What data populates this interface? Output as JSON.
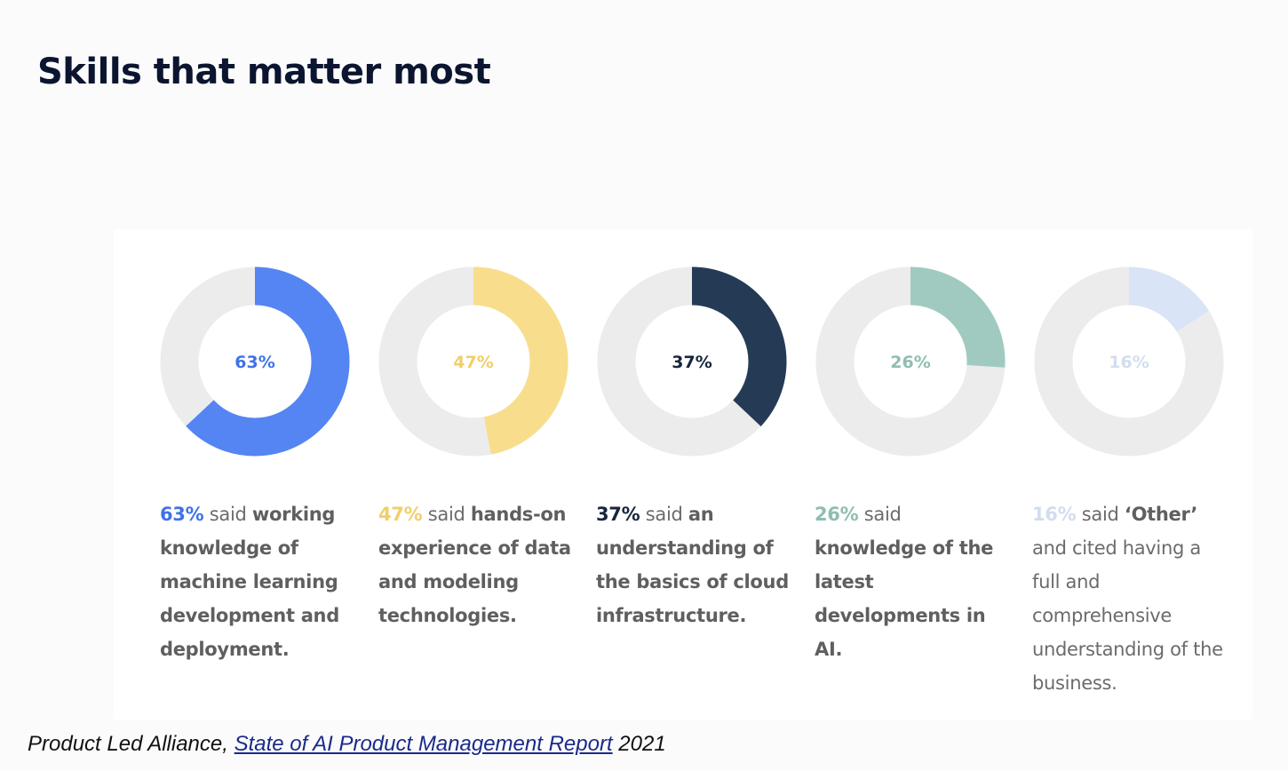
{
  "page": {
    "title": "Skills that matter most"
  },
  "chart_data": {
    "type": "pie",
    "variant": "donut",
    "title": "Skills that matter most",
    "track_color": "#ececec",
    "items": [
      {
        "value": 63,
        "label": "63%",
        "color": "#5585f2",
        "label_color": "#3f72e8",
        "text_pre": " said ",
        "text_bold": "working knowledge of machine learning development and deployment.",
        "text_post": ""
      },
      {
        "value": 47,
        "label": "47%",
        "color": "#f8de8c",
        "label_color": "#f0cf6a",
        "text_pre": " said ",
        "text_bold": "hands-on experience of data and modeling technologies.",
        "text_post": ""
      },
      {
        "value": 37,
        "label": "37%",
        "color": "#253a55",
        "label_color": "#17263d",
        "text_pre": " said ",
        "text_bold": "an understanding of the basics of cloud infrastructure.",
        "text_post": ""
      },
      {
        "value": 26,
        "label": "26%",
        "color": "#a0cac0",
        "label_color": "#8fbdb2",
        "text_pre": " said ",
        "text_bold": "knowledge of the latest developments in AI.",
        "text_post": ""
      },
      {
        "value": 16,
        "label": "16%",
        "color": "#d9e4f6",
        "label_color": "#d2ddef",
        "text_pre": " said ",
        "text_bold": "‘Other’",
        "text_post": " and cited having a full and comprehensive understanding of the business."
      }
    ]
  },
  "footer": {
    "prefix": "Product Led Alliance, ",
    "link_text": "State of AI Product Management Report",
    "suffix": " 2021"
  }
}
